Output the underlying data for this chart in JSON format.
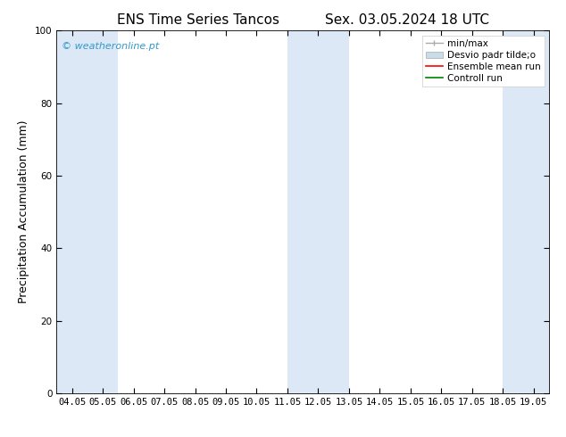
{
  "title_left": "ENS Time Series Tancos",
  "title_right": "Sex. 03.05.2024 18 UTC",
  "ylabel": "Precipitation Accumulation (mm)",
  "ylim": [
    0,
    100
  ],
  "yticks": [
    0,
    20,
    40,
    60,
    80,
    100
  ],
  "x_labels": [
    "04.05",
    "05.05",
    "06.05",
    "07.05",
    "08.05",
    "09.05",
    "10.05",
    "11.05",
    "12.05",
    "13.05",
    "14.05",
    "15.05",
    "16.05",
    "17.05",
    "18.05",
    "19.05"
  ],
  "x_values": [
    0,
    1,
    2,
    3,
    4,
    5,
    6,
    7,
    8,
    9,
    10,
    11,
    12,
    13,
    14,
    15
  ],
  "xlim": [
    -0.5,
    15.5
  ],
  "shaded_bands": [
    {
      "x_start": -0.5,
      "x_end": 1.5,
      "color": "#dce8f5"
    },
    {
      "x_start": 7.0,
      "x_end": 9.0,
      "color": "#dce8f5"
    },
    {
      "x_start": 14.0,
      "x_end": 15.5,
      "color": "#dce8f5"
    }
  ],
  "bg_color": "#ffffff",
  "watermark_text": "© weatheronline.pt",
  "watermark_color": "#3399cc",
  "band_color": "#dce8f5",
  "legend_minmax_color": "#aaaaaa",
  "legend_desvio_color": "#c8dcea",
  "legend_ens_color": "#ff0000",
  "legend_ctrl_color": "#008000",
  "title_fontsize": 11,
  "tick_fontsize": 7.5,
  "ylabel_fontsize": 9,
  "watermark_fontsize": 8,
  "legend_fontsize": 7.5
}
